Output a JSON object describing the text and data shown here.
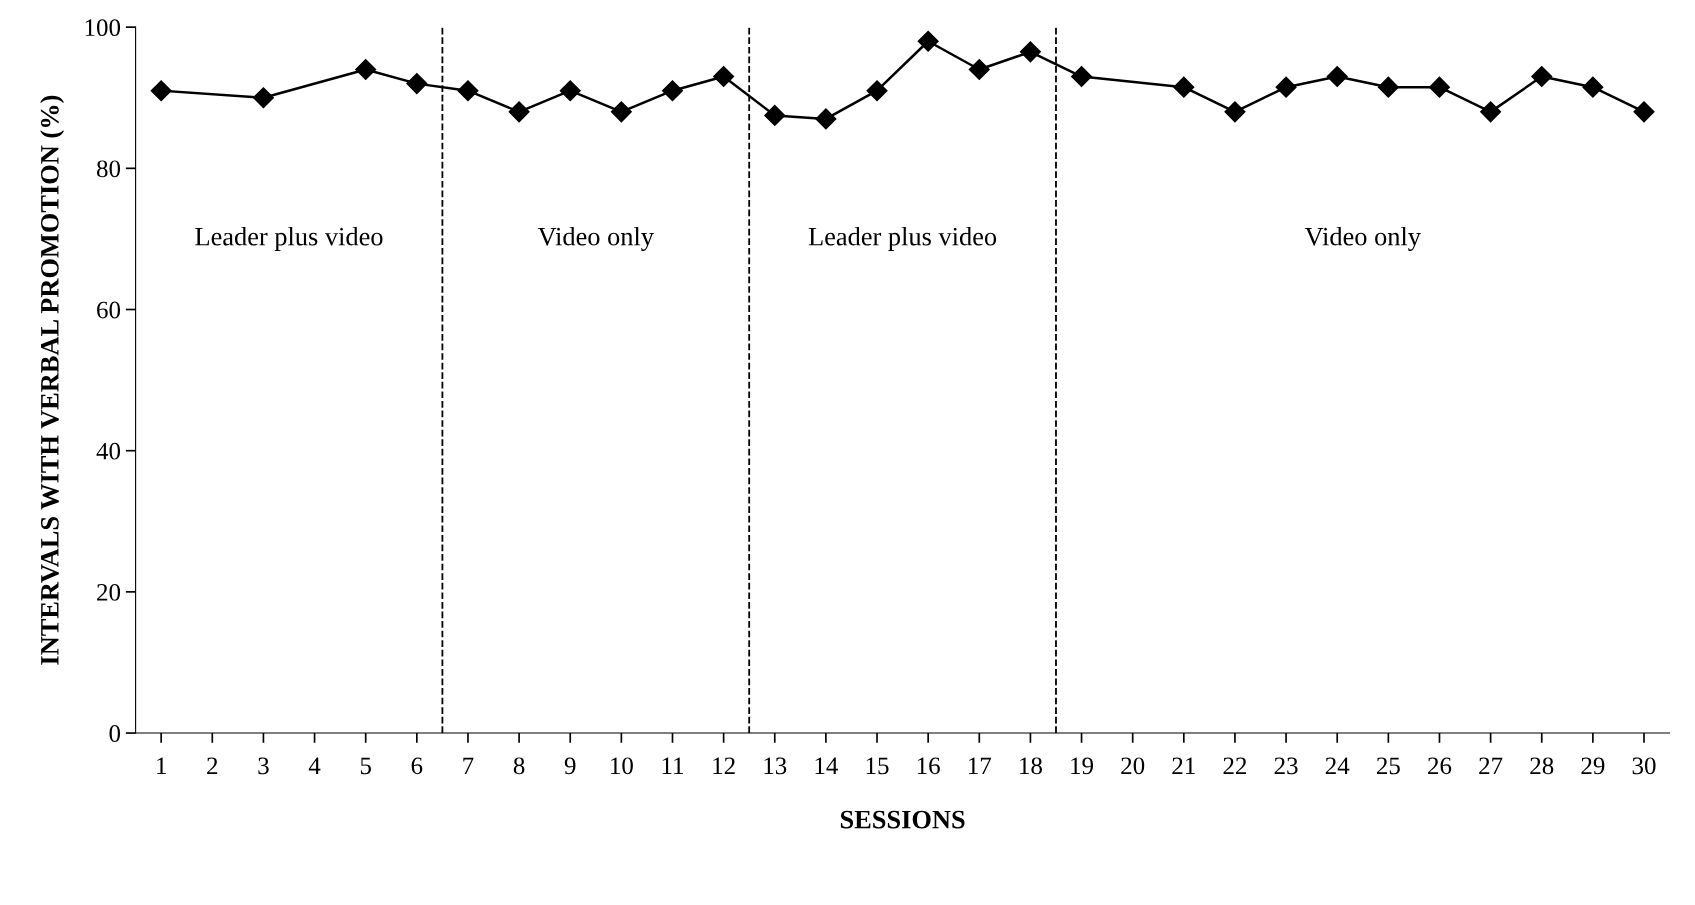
{
  "chart_data": {
    "type": "line",
    "xlabel": "SESSIONS",
    "ylabel": "INTERVALS WITH VERBAL PROMOTION (%)",
    "x": [
      1,
      3,
      5,
      6,
      7,
      8,
      9,
      10,
      11,
      12,
      13,
      14,
      15,
      16,
      17,
      18,
      19,
      21,
      22,
      23,
      24,
      25,
      26,
      27,
      28,
      29,
      30
    ],
    "series": [
      {
        "color": "#000000",
        "values": [
          91,
          90,
          94,
          92,
          91,
          88,
          91,
          88,
          91,
          93,
          87.5,
          87,
          91,
          98,
          94,
          96.5,
          93,
          91.5,
          88,
          91.5,
          93,
          91.5,
          91.5,
          88,
          93,
          91.5,
          88
        ]
      }
    ],
    "xlim": [
      0.5,
      30.5
    ],
    "xticks": [
      1,
      2,
      3,
      4,
      5,
      6,
      7,
      8,
      9,
      10,
      11,
      12,
      13,
      14,
      15,
      16,
      17,
      18,
      19,
      20,
      21,
      22,
      23,
      24,
      25,
      26,
      27,
      28,
      29,
      30
    ],
    "ylim": [
      0,
      100
    ],
    "yticks": [
      0,
      20,
      40,
      60,
      80,
      100
    ],
    "marker": "diamond",
    "line_style": "solid",
    "grid": false,
    "legend": false,
    "ref_lines": [
      {
        "axis": "x",
        "value": 6.5,
        "line_style": "dashed",
        "color": "#000000"
      },
      {
        "axis": "x",
        "value": 12.5,
        "line_style": "dashed",
        "color": "#000000"
      },
      {
        "axis": "x",
        "value": 18.5,
        "line_style": "dashed",
        "color": "#000000"
      }
    ],
    "annotations": [
      "Leader plus video",
      "Video only",
      "Leader plus video",
      "Video only"
    ]
  }
}
